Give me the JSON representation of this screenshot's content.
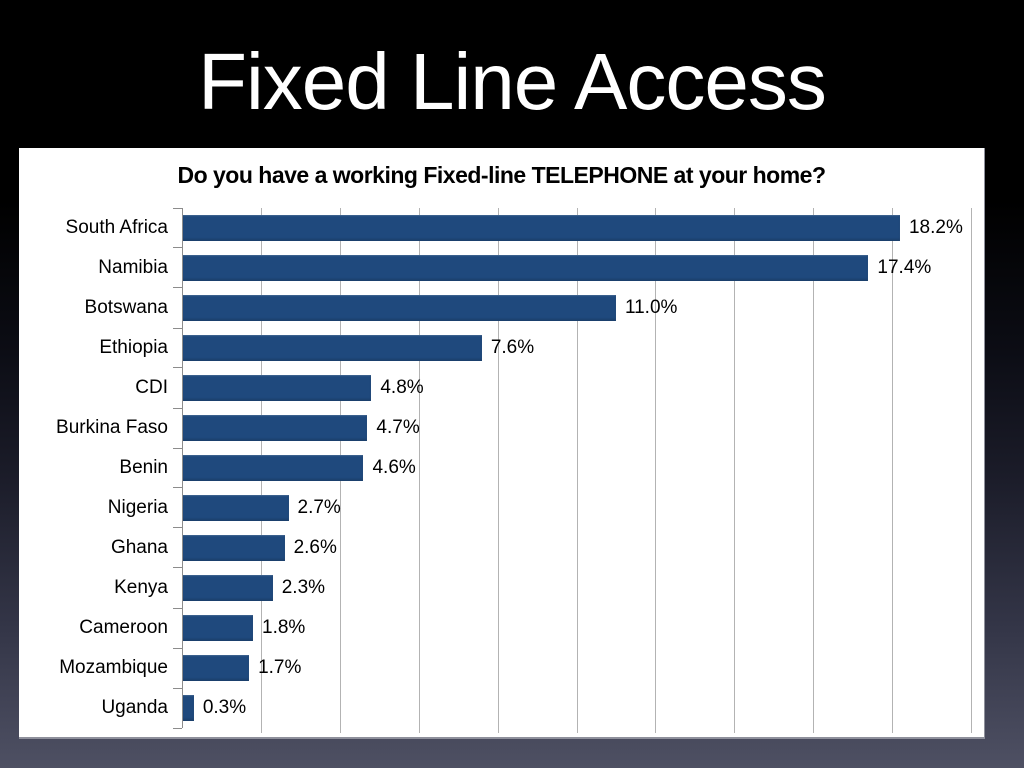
{
  "slide": {
    "title": "Fixed Line Access"
  },
  "chart_data": {
    "type": "bar",
    "orientation": "horizontal",
    "title": "Do you have a working Fixed-line TELEPHONE at your home?",
    "categories": [
      "South Africa",
      "Namibia",
      "Botswana",
      "Ethiopia",
      "CDI",
      "Burkina Faso",
      "Benin",
      "Nigeria",
      "Ghana",
      "Kenya",
      "Cameroon",
      "Mozambique",
      "Uganda"
    ],
    "values": [
      18.2,
      17.4,
      11.0,
      7.6,
      4.8,
      4.7,
      4.6,
      2.7,
      2.6,
      2.3,
      1.8,
      1.7,
      0.3
    ],
    "value_labels": [
      "18.2%",
      "17.4%",
      "11.0%",
      "7.6%",
      "4.8%",
      "4.7%",
      "4.6%",
      "2.7%",
      "2.6%",
      "2.3%",
      "1.8%",
      "1.7%",
      "0.3%"
    ],
    "xlabel": "",
    "ylabel": "",
    "xlim": [
      0,
      20
    ],
    "grid_step": 2,
    "grid": true,
    "legend": false,
    "bar_color": "#1F497D",
    "gridline_color": "#b3b3b3",
    "axis_color": "#8c8c8c"
  },
  "colors": {
    "slide_title_text": "#ffffff",
    "title_band_background": "#000000",
    "panel_background": "#ffffff",
    "background_gradient_bottom": "#4e5063"
  }
}
